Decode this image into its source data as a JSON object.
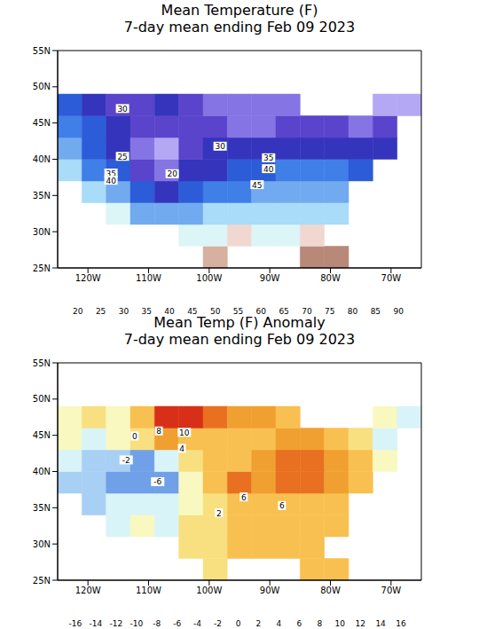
{
  "chart_data": [
    {
      "type": "heatmap",
      "title": "Mean Temperature (F)",
      "subtitle": "7-day mean ending Feb 09 2023",
      "xlim": [
        -125,
        -65
      ],
      "xticks": [
        {
          "value": -120,
          "label": "120W"
        },
        {
          "value": -110,
          "label": "110W"
        },
        {
          "value": -100,
          "label": "100W"
        },
        {
          "value": -90,
          "label": "90W"
        },
        {
          "value": -80,
          "label": "80W"
        },
        {
          "value": -70,
          "label": "70W"
        }
      ],
      "ylim": [
        25,
        55
      ],
      "yticks": [
        {
          "value": 25,
          "label": "25N"
        },
        {
          "value": 30,
          "label": "30N"
        },
        {
          "value": 35,
          "label": "35N"
        },
        {
          "value": 40,
          "label": "40N"
        },
        {
          "value": 45,
          "label": "45N"
        },
        {
          "value": 50,
          "label": "50N"
        },
        {
          "value": 55,
          "label": "55N"
        }
      ],
      "lon_edges": [
        -125,
        -121,
        -117,
        -113,
        -109,
        -105,
        -101,
        -97,
        -93,
        -89,
        -85,
        -81,
        -77,
        -73,
        -69,
        -65
      ],
      "lat_edges": [
        25,
        28,
        31,
        34,
        37,
        40,
        43,
        46,
        49
      ],
      "cells": [
        [
          null,
          null,
          null,
          null,
          null,
          null,
          65,
          null,
          null,
          null,
          70,
          72,
          null,
          null,
          null
        ],
        [
          null,
          null,
          null,
          null,
          null,
          57,
          58,
          60,
          58,
          58,
          60,
          null,
          null,
          null,
          null
        ],
        [
          null,
          null,
          55,
          48,
          45,
          45,
          50,
          50,
          52,
          52,
          52,
          53,
          null,
          null,
          null
        ],
        [
          null,
          52,
          45,
          38,
          33,
          38,
          42,
          43,
          45,
          45,
          45,
          47,
          null,
          null,
          null
        ],
        [
          50,
          42,
          35,
          25,
          20,
          30,
          33,
          35,
          38,
          40,
          40,
          40,
          38,
          null,
          null
        ],
        [
          45,
          38,
          30,
          22,
          18,
          28,
          30,
          30,
          32,
          33,
          33,
          32,
          32,
          34,
          null
        ],
        [
          42,
          35,
          30,
          27,
          28,
          28,
          26,
          24,
          24,
          25,
          26,
          26,
          24,
          28,
          null
        ],
        [
          38,
          32,
          28,
          28,
          30,
          25,
          22,
          20,
          20,
          22,
          null,
          null,
          null,
          18,
          18
        ]
      ],
      "colorbar": {
        "bounds": [
          15,
          20,
          25,
          30,
          35,
          40,
          45,
          50,
          55,
          60,
          65,
          70,
          75,
          80,
          85,
          90,
          95
        ],
        "ticks": [
          20,
          25,
          30,
          35,
          40,
          45,
          50,
          55,
          60,
          65,
          70,
          75,
          80,
          85,
          90
        ],
        "colors": [
          "#b4a8f4",
          "#8474e4",
          "#5a44cc",
          "#3434bc",
          "#2c5cd8",
          "#407ee8",
          "#72aaf0",
          "#a8dcf8",
          "#dcf6f8",
          "#f0d8d0",
          "#d8b0a0",
          "#b88878",
          "#8c5a48",
          "#f8e070",
          "#f89828",
          "#c00000"
        ]
      },
      "annotations": [
        {
          "text": "30",
          "lon": -114.3,
          "lat": 47.0
        },
        {
          "text": "25",
          "lon": -114.3,
          "lat": 40.4
        },
        {
          "text": "35",
          "lon": -116.2,
          "lat": 38.1
        },
        {
          "text": "40",
          "lon": -116.2,
          "lat": 37.1
        },
        {
          "text": "20",
          "lon": -106.1,
          "lat": 38.0
        },
        {
          "text": "30",
          "lon": -98.2,
          "lat": 41.8
        },
        {
          "text": "35",
          "lon": -90.2,
          "lat": 40.2
        },
        {
          "text": "40",
          "lon": -90.2,
          "lat": 38.7
        },
        {
          "text": "45",
          "lon": -92.1,
          "lat": 36.5
        }
      ]
    },
    {
      "type": "heatmap",
      "title": "Mean Temp (F) Anomaly",
      "subtitle": "7-day mean ending Feb 09 2023",
      "xlim": [
        -125,
        -65
      ],
      "xticks": [
        {
          "value": -120,
          "label": "120W"
        },
        {
          "value": -110,
          "label": "110W"
        },
        {
          "value": -100,
          "label": "100W"
        },
        {
          "value": -90,
          "label": "90W"
        },
        {
          "value": -80,
          "label": "80W"
        },
        {
          "value": -70,
          "label": "70W"
        }
      ],
      "ylim": [
        25,
        55
      ],
      "yticks": [
        {
          "value": 25,
          "label": "25N"
        },
        {
          "value": 30,
          "label": "30N"
        },
        {
          "value": 35,
          "label": "35N"
        },
        {
          "value": 40,
          "label": "40N"
        },
        {
          "value": 45,
          "label": "45N"
        },
        {
          "value": 50,
          "label": "50N"
        },
        {
          "value": 55,
          "label": "55N"
        }
      ],
      "lon_edges": [
        -125,
        -121,
        -117,
        -113,
        -109,
        -105,
        -101,
        -97,
        -93,
        -89,
        -85,
        -81,
        -77,
        -73,
        -69,
        -65
      ],
      "lat_edges": [
        25,
        28,
        31,
        34,
        37,
        40,
        43,
        46,
        49
      ],
      "cells": [
        [
          null,
          null,
          null,
          null,
          null,
          null,
          3,
          null,
          null,
          null,
          5,
          5,
          null,
          null,
          null
        ],
        [
          null,
          null,
          null,
          null,
          null,
          2,
          3,
          4,
          4,
          4,
          5,
          null,
          null,
          null,
          null
        ],
        [
          null,
          null,
          -1,
          0,
          -1,
          2,
          3,
          4,
          5,
          5,
          5,
          4,
          null,
          null,
          null
        ],
        [
          null,
          -3,
          -2,
          -1,
          -2,
          1,
          3,
          5,
          5,
          5,
          5,
          5,
          null,
          null,
          null
        ],
        [
          -4,
          -3,
          -5,
          -5,
          -6,
          0,
          4,
          8,
          7,
          8,
          8,
          7,
          5,
          null,
          null
        ],
        [
          -1,
          -3,
          -4,
          -5,
          -2,
          2,
          4,
          5,
          6,
          9,
          9,
          7,
          4,
          1,
          null
        ],
        [
          1,
          -1,
          0,
          3,
          6,
          5,
          5,
          5,
          5,
          6,
          6,
          4,
          2,
          -1,
          null
        ],
        [
          1,
          2,
          1,
          4,
          10,
          11,
          9,
          7,
          6,
          5,
          null,
          null,
          null,
          1,
          -1
        ]
      ],
      "colorbar": {
        "bounds": [
          -18,
          -16,
          -14,
          -12,
          -10,
          -8,
          -6,
          -4,
          -2,
          0,
          2,
          4,
          6,
          8,
          10,
          12,
          14,
          16,
          18
        ],
        "ticks": [
          -16,
          -14,
          -12,
          -10,
          -8,
          -6,
          -4,
          -2,
          0,
          2,
          4,
          6,
          8,
          10,
          12,
          14,
          16
        ],
        "colors": [
          "#c4b4f8",
          "#9a88f0",
          "#7858e0",
          "#5838c8",
          "#3050d0",
          "#4878e0",
          "#70a0e8",
          "#a8d0f4",
          "#d8f4f8",
          "#f8f8c0",
          "#f8e080",
          "#f8c050",
          "#f0a030",
          "#e87020",
          "#d83018",
          "#a00000",
          "#d8b0a0",
          "#8c5a48"
        ]
      },
      "annotations": [
        {
          "text": "8",
          "lon": -108.3,
          "lat": 45.6
        },
        {
          "text": "10",
          "lon": -104.1,
          "lat": 45.4
        },
        {
          "text": "4",
          "lon": -104.5,
          "lat": 43.2
        },
        {
          "text": "0",
          "lon": -112.3,
          "lat": 44.9
        },
        {
          "text": "-2",
          "lon": -113.7,
          "lat": 41.6
        },
        {
          "text": "-6",
          "lon": -108.5,
          "lat": 38.6
        },
        {
          "text": "6",
          "lon": -94.3,
          "lat": 36.5
        },
        {
          "text": "6",
          "lon": -88.0,
          "lat": 35.3
        },
        {
          "text": "2",
          "lon": -98.4,
          "lat": 34.3
        }
      ]
    }
  ]
}
